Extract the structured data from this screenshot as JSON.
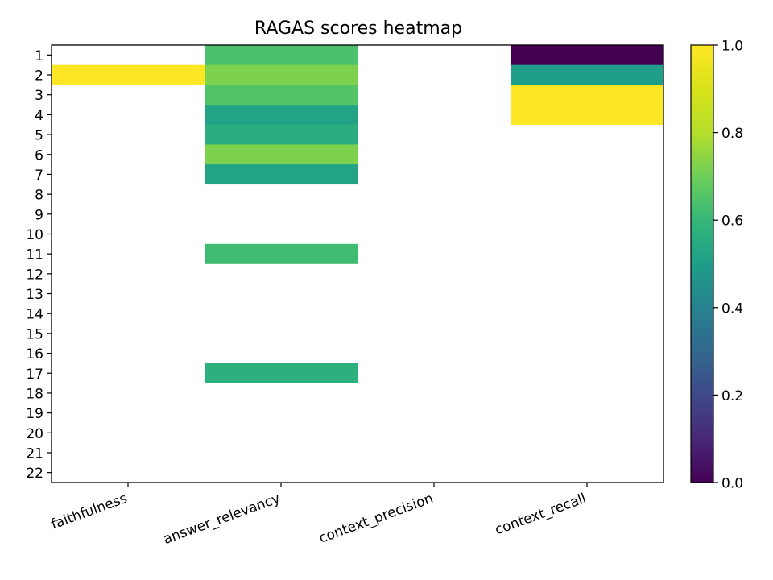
{
  "chart_data": {
    "type": "heatmap",
    "title": "RAGAS scores heatmap",
    "xlabel": "",
    "ylabel": "",
    "columns": [
      "faithfulness",
      "answer_relevancy",
      "context_precision",
      "context_recall"
    ],
    "rows": [
      "1",
      "2",
      "3",
      "4",
      "5",
      "6",
      "7",
      "8",
      "9",
      "10",
      "11",
      "12",
      "13",
      "14",
      "15",
      "16",
      "17",
      "18",
      "19",
      "20",
      "21",
      "22"
    ],
    "values": [
      [
        null,
        0.64,
        null,
        0.0
      ],
      [
        1.0,
        0.72,
        null,
        0.5
      ],
      [
        null,
        0.65,
        null,
        1.0
      ],
      [
        null,
        0.52,
        null,
        1.0
      ],
      [
        null,
        0.56,
        null,
        null
      ],
      [
        null,
        0.72,
        null,
        null
      ],
      [
        null,
        0.52,
        null,
        null
      ],
      [
        null,
        null,
        null,
        null
      ],
      [
        null,
        null,
        null,
        null
      ],
      [
        null,
        null,
        null,
        null
      ],
      [
        null,
        0.62,
        null,
        null
      ],
      [
        null,
        null,
        null,
        null
      ],
      [
        null,
        null,
        null,
        null
      ],
      [
        null,
        null,
        null,
        null
      ],
      [
        null,
        null,
        null,
        null
      ],
      [
        null,
        null,
        null,
        null
      ],
      [
        null,
        0.57,
        null,
        null
      ],
      [
        null,
        null,
        null,
        null
      ],
      [
        null,
        null,
        null,
        null
      ],
      [
        null,
        null,
        null,
        null
      ],
      [
        null,
        null,
        null,
        null
      ],
      [
        null,
        null,
        null,
        null
      ]
    ],
    "colormap": "viridis",
    "vmin": 0.0,
    "vmax": 1.0,
    "colorbar_ticks": [
      "0.0",
      "0.2",
      "0.4",
      "0.6",
      "0.8",
      "1.0"
    ],
    "grid": false,
    "legend": "colorbar-right"
  }
}
